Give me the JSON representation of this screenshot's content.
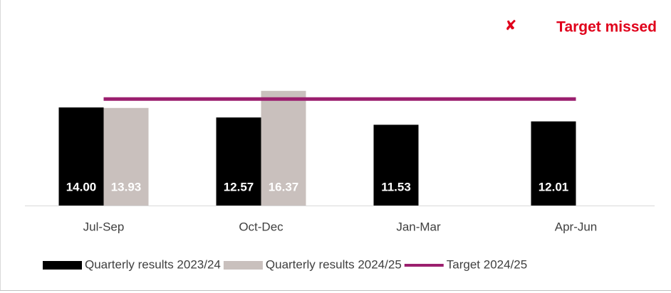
{
  "chart_data": {
    "type": "bar",
    "annotation": "Target missed",
    "categories": [
      "Jul-Sep",
      "Oct-Dec",
      "Jan-Mar",
      "Apr-Jun"
    ],
    "series": [
      {
        "name": "Quarterly results 2023/24",
        "color": "#000000",
        "values": [
          14.0,
          12.57,
          11.53,
          12.01
        ],
        "value_labels": [
          "14.00",
          "12.57",
          "11.53",
          "12.01"
        ]
      },
      {
        "name": "Quarterly results 2024/25",
        "color": "#c9c0bd",
        "values": [
          13.93,
          16.37,
          null,
          null
        ],
        "value_labels": [
          "13.93",
          "16.37",
          null,
          null
        ]
      },
      {
        "name": "Target 2024/25",
        "type": "line",
        "color": "#9b1f6e",
        "values": [
          15.2,
          15.2,
          15.2,
          15.2
        ]
      }
    ],
    "ylim": [
      0,
      20
    ]
  }
}
